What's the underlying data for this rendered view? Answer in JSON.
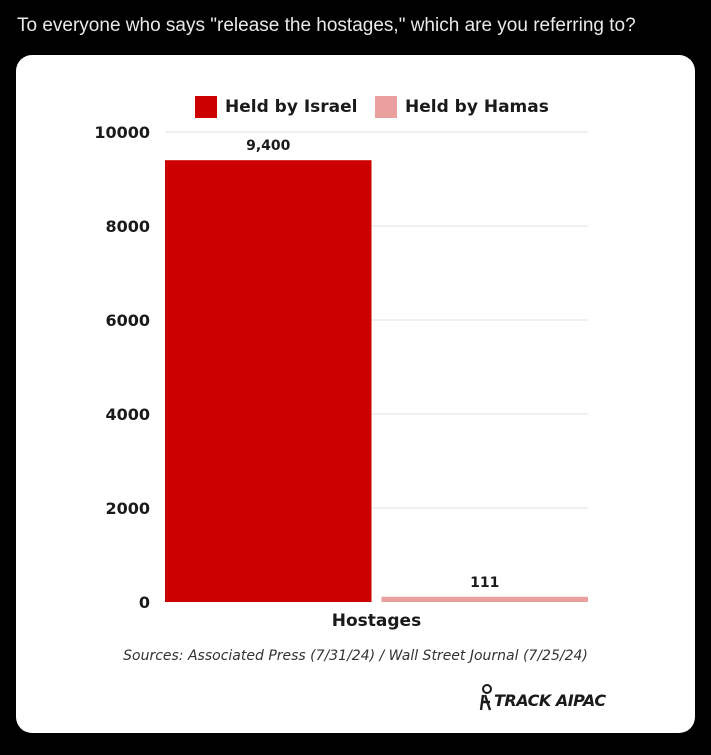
{
  "post": {
    "text": "To everyone who says \"release the hostages,\" which are you referring to?"
  },
  "chart_data": {
    "type": "bar",
    "categories": [
      "Hostages"
    ],
    "series": [
      {
        "name": "Held by Israel",
        "values": [
          9400
        ],
        "value_label": "9,400",
        "color": "#cc0000"
      },
      {
        "name": "Held by Hamas",
        "values": [
          111
        ],
        "value_label": "111",
        "color": "#eba0a0"
      }
    ],
    "title": "",
    "xlabel": "Hostages",
    "ylabel": "",
    "ylim": [
      0,
      10000
    ],
    "yticks": [
      0,
      2000,
      4000,
      6000,
      8000,
      10000
    ],
    "ytick_labels": [
      "0",
      "2000",
      "4000",
      "6000",
      "8000",
      "10000"
    ],
    "grid": true,
    "legend_position": "top"
  },
  "sources": "Sources: Associated Press (7/31/24) / Wall Street Journal (7/25/24)",
  "brand": {
    "text": "TRACK AIPAC",
    "icon": "track-aipac-logo-icon"
  }
}
